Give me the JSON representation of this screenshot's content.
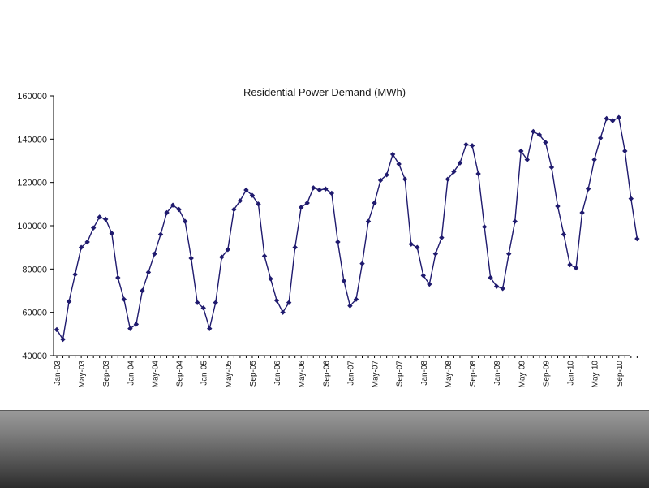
{
  "chart_data": {
    "type": "line",
    "title": "Residential Power Demand (MWh)",
    "xlabel": "",
    "ylabel": "",
    "ylim": [
      40000,
      160000
    ],
    "yticks": [
      "40000",
      "60000",
      "80000",
      "100000",
      "120000",
      "140000",
      "160000"
    ],
    "xtick_labels": [
      "Jan-03",
      "May-03",
      "Sep-03",
      "Jan-04",
      "May-04",
      "Sep-04",
      "Jan-05",
      "May-05",
      "Sep-05",
      "Jan-06",
      "May-06",
      "Sep-06",
      "Jan-07",
      "May-07",
      "Sep-07",
      "Jan-08",
      "May-08",
      "Sep-08",
      "Jan-09",
      "May-09",
      "Sep-09",
      "Jan-10",
      "May-10",
      "Sep-10"
    ],
    "grid": false,
    "legend": "none",
    "line_color": "#1f1a6e",
    "series": [
      {
        "values": [
          52000,
          47500,
          65000,
          77500,
          90000,
          92500,
          99000,
          104000,
          103000,
          96500,
          76000,
          66000,
          52500,
          54500,
          70000,
          78500,
          87000,
          96000,
          106000,
          109500,
          107500,
          102000,
          85000,
          64500,
          62000,
          52500,
          64500,
          85500,
          89000,
          107500,
          111500,
          116500,
          114000,
          110000,
          86000,
          75500,
          65500,
          60000,
          64500,
          90000,
          108500,
          110500,
          117500,
          116500,
          117000,
          115000,
          92500,
          74500,
          63000,
          66000,
          82500,
          102000,
          110500,
          121000,
          123500,
          133000,
          128500,
          121500,
          91500,
          90000,
          77000,
          73000,
          87000,
          94500,
          121500,
          125000,
          129000,
          137500,
          137000,
          124000,
          99500,
          76000,
          72000,
          71000,
          87000,
          102000,
          134500,
          130500,
          143500,
          142000,
          138500,
          127000,
          109000,
          96000,
          82000,
          80500,
          106000,
          117000,
          130500,
          140500,
          149500,
          148500,
          150000,
          134500,
          112500,
          94000
        ]
      }
    ]
  }
}
